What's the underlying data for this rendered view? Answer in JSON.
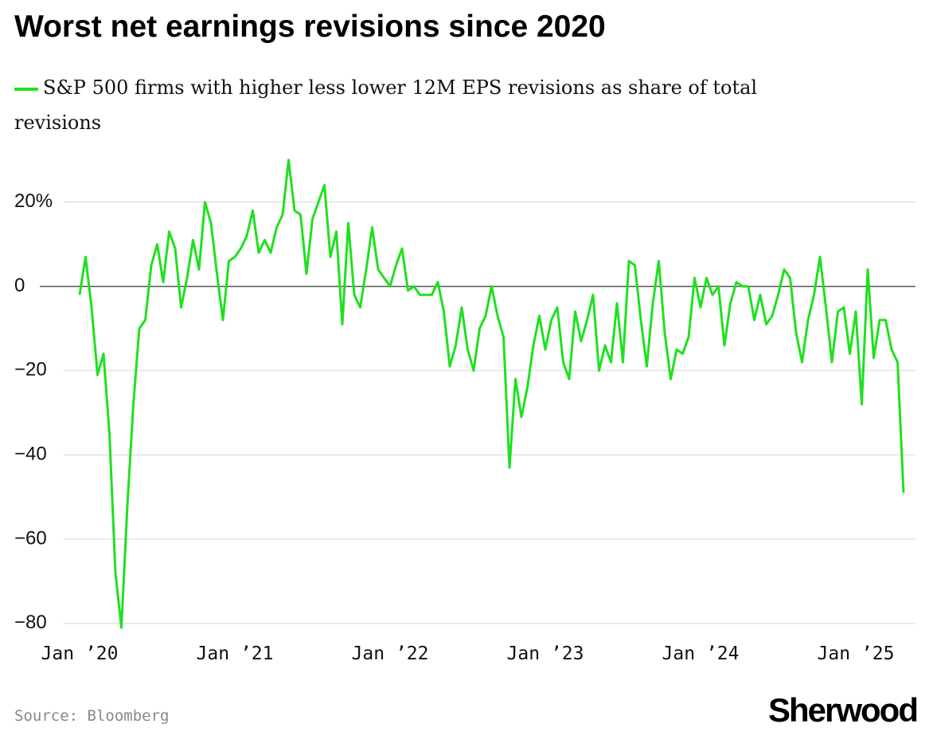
{
  "chart_data": {
    "type": "line",
    "title": "Worst net earnings revisions since 2020",
    "source": "Source: Bloomberg",
    "brand": "Sherwood",
    "categories": [
      "Jan ’20",
      null,
      null,
      null,
      null,
      null,
      null,
      null,
      null,
      null,
      null,
      null,
      null,
      null,
      null,
      null,
      null,
      null,
      null,
      null,
      null,
      null,
      null,
      null,
      null,
      null,
      "Jan ’21",
      null,
      null,
      null,
      null,
      null,
      null,
      null,
      null,
      null,
      null,
      null,
      null,
      null,
      null,
      null,
      null,
      null,
      null,
      null,
      null,
      null,
      null,
      null,
      null,
      null,
      "Jan ’22",
      null,
      null,
      null,
      null,
      null,
      null,
      null,
      null,
      null,
      null,
      null,
      null,
      null,
      null,
      null,
      null,
      null,
      null,
      null,
      null,
      null,
      null,
      null,
      null,
      null,
      "Jan ’23",
      null,
      null,
      null,
      null,
      null,
      null,
      null,
      null,
      null,
      null,
      null,
      null,
      null,
      null,
      null,
      null,
      null,
      null,
      null,
      null,
      null,
      null,
      null,
      null,
      null,
      "Jan ’24",
      null,
      null,
      null,
      null,
      null,
      null,
      null,
      null,
      null,
      null,
      null,
      null,
      null,
      null,
      null,
      null,
      null,
      null,
      null,
      null,
      null,
      null,
      null,
      null,
      null,
      "Jan ’25",
      null,
      null,
      null,
      null,
      null,
      null,
      null,
      null
    ],
    "series": [
      {
        "name": "S&P 500 firms with higher less lower 12M EPS revisions as share of total revisions",
        "color": "#1fe01f",
        "values": [
          -2,
          7,
          -5,
          -21,
          -16,
          -35,
          -68,
          -81,
          -52,
          -28,
          -10,
          -8,
          5,
          10,
          1,
          13,
          9,
          -5,
          2,
          11,
          4,
          20,
          15,
          3,
          -8,
          6,
          7,
          9,
          12,
          18,
          8,
          11,
          8,
          14,
          17,
          30,
          18,
          17,
          3,
          16,
          20,
          24,
          7,
          13,
          -9,
          15,
          -2,
          -5,
          4,
          14,
          4,
          2,
          0,
          5,
          9,
          -1,
          0,
          -2,
          -2,
          -2,
          1,
          -6,
          -19,
          -14,
          -5,
          -15,
          -20,
          -10,
          -7,
          0,
          -7,
          -12,
          -43,
          -22,
          -31,
          -24,
          -14,
          -7,
          -15,
          -8,
          -5,
          -18,
          -22,
          -6,
          -13,
          -8,
          -2,
          -20,
          -14,
          -18,
          -4,
          -18,
          6,
          5,
          -8,
          -19,
          -4,
          6,
          -11,
          -22,
          -15,
          -16,
          -12,
          2,
          -5,
          2,
          -2,
          0,
          -14,
          -4,
          1,
          0,
          0,
          -8,
          -2,
          -9,
          -7,
          -2,
          4,
          2,
          -11,
          -18,
          -8,
          -2,
          7,
          -5,
          -18,
          -6,
          -5,
          -16,
          -6,
          -28,
          4,
          -17,
          -8,
          -8,
          -15,
          -18,
          -49
        ]
      }
    ],
    "ylim": [
      -84,
      33
    ],
    "yticks": [
      {
        "value": 20,
        "label": "20%"
      },
      0,
      {
        "value": -20,
        "label": "−20"
      },
      {
        "value": -40,
        "label": "−40"
      },
      {
        "value": -60,
        "label": "−60"
      },
      {
        "value": -80,
        "label": "−80"
      }
    ],
    "grid": true
  }
}
